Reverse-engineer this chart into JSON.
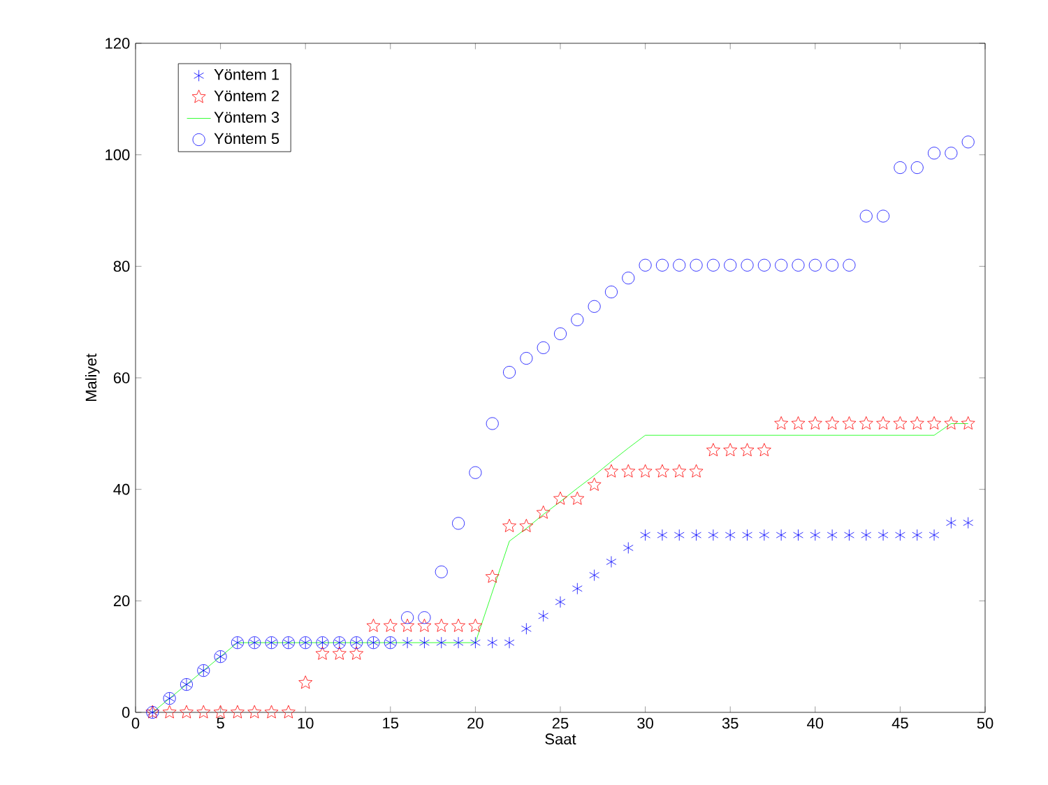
{
  "chart_data": {
    "type": "scatter",
    "xlabel": "Saat",
    "ylabel": "Maliyet",
    "x": [
      1,
      2,
      3,
      4,
      5,
      6,
      7,
      8,
      9,
      10,
      11,
      12,
      13,
      14,
      15,
      16,
      17,
      18,
      19,
      20,
      21,
      22,
      23,
      24,
      25,
      26,
      27,
      28,
      29,
      30,
      31,
      32,
      33,
      34,
      35,
      36,
      37,
      38,
      39,
      40,
      41,
      42,
      43,
      44,
      45,
      46,
      47,
      48,
      49
    ],
    "xlim": [
      0,
      50
    ],
    "xticks": [
      0,
      5,
      10,
      15,
      20,
      25,
      30,
      35,
      40,
      45,
      50
    ],
    "ylim": [
      0,
      120
    ],
    "yticks": [
      0,
      20,
      40,
      60,
      80,
      100,
      120
    ],
    "grid": false,
    "legend": "top left",
    "series": [
      {
        "name": "Yöntem 1",
        "color": "#0000ff",
        "marker": "cross",
        "values": [
          0,
          2.5,
          5,
          7.5,
          10,
          12.5,
          12.5,
          12.5,
          12.5,
          12.5,
          12.5,
          12.5,
          12.5,
          12.5,
          12.5,
          12.5,
          12.5,
          12.5,
          12.5,
          12.5,
          12.5,
          12.5,
          15,
          17.3,
          19.8,
          22.2,
          24.6,
          27,
          29.5,
          31.8,
          31.8,
          31.8,
          31.8,
          31.8,
          31.8,
          31.8,
          31.8,
          31.8,
          31.8,
          31.8,
          31.8,
          31.8,
          31.8,
          31.8,
          31.8,
          31.8,
          31.8,
          34,
          34
        ]
      },
      {
        "name": "Yöntem 2",
        "color": "#ff0000",
        "marker": "star",
        "values": [
          0,
          0,
          0,
          0,
          0,
          0,
          0,
          0,
          0,
          5.3,
          10.5,
          10.5,
          10.5,
          15.5,
          15.5,
          15.5,
          15.5,
          15.5,
          15.5,
          15.5,
          24.3,
          33.4,
          33.4,
          35.8,
          38.3,
          38.3,
          40.8,
          43.2,
          43.2,
          43.2,
          43.2,
          43.2,
          43.2,
          47,
          47,
          47,
          47,
          51.8,
          51.8,
          51.8,
          51.8,
          51.8,
          51.8,
          51.8,
          51.8,
          51.8,
          51.8,
          51.8,
          51.8
        ]
      },
      {
        "name": "Yöntem 3",
        "color": "#00ff00",
        "type": "line",
        "marker": "none",
        "values": [
          0,
          2.5,
          5,
          7.5,
          10,
          12.5,
          12.5,
          12.5,
          12.5,
          12.5,
          12.5,
          12.5,
          12.5,
          12.5,
          12.5,
          12.5,
          12.5,
          12.5,
          12.5,
          12.5,
          21.6,
          30.7,
          33,
          35.5,
          37.8,
          40.2,
          42.5,
          45,
          47.4,
          49.7,
          49.7,
          49.7,
          49.7,
          49.7,
          49.7,
          49.7,
          49.7,
          49.7,
          49.7,
          49.7,
          49.7,
          49.7,
          49.7,
          49.7,
          49.7,
          49.7,
          49.7,
          51.8,
          51.8
        ]
      },
      {
        "name": "Yöntem 5",
        "color": "#0000ff",
        "marker": "circle",
        "values": [
          0,
          2.5,
          5,
          7.5,
          10,
          12.5,
          12.5,
          12.5,
          12.5,
          12.5,
          12.5,
          12.5,
          12.5,
          12.5,
          12.5,
          17,
          17,
          25.2,
          33.9,
          43,
          51.8,
          61,
          63.5,
          65.4,
          67.9,
          70.4,
          72.8,
          75.4,
          77.9,
          80.2,
          80.2,
          80.2,
          80.2,
          80.2,
          80.2,
          80.2,
          80.2,
          80.2,
          80.2,
          80.2,
          80.2,
          80.2,
          89,
          89,
          97.7,
          97.7,
          100.3,
          100.3,
          102.3
        ]
      }
    ]
  }
}
